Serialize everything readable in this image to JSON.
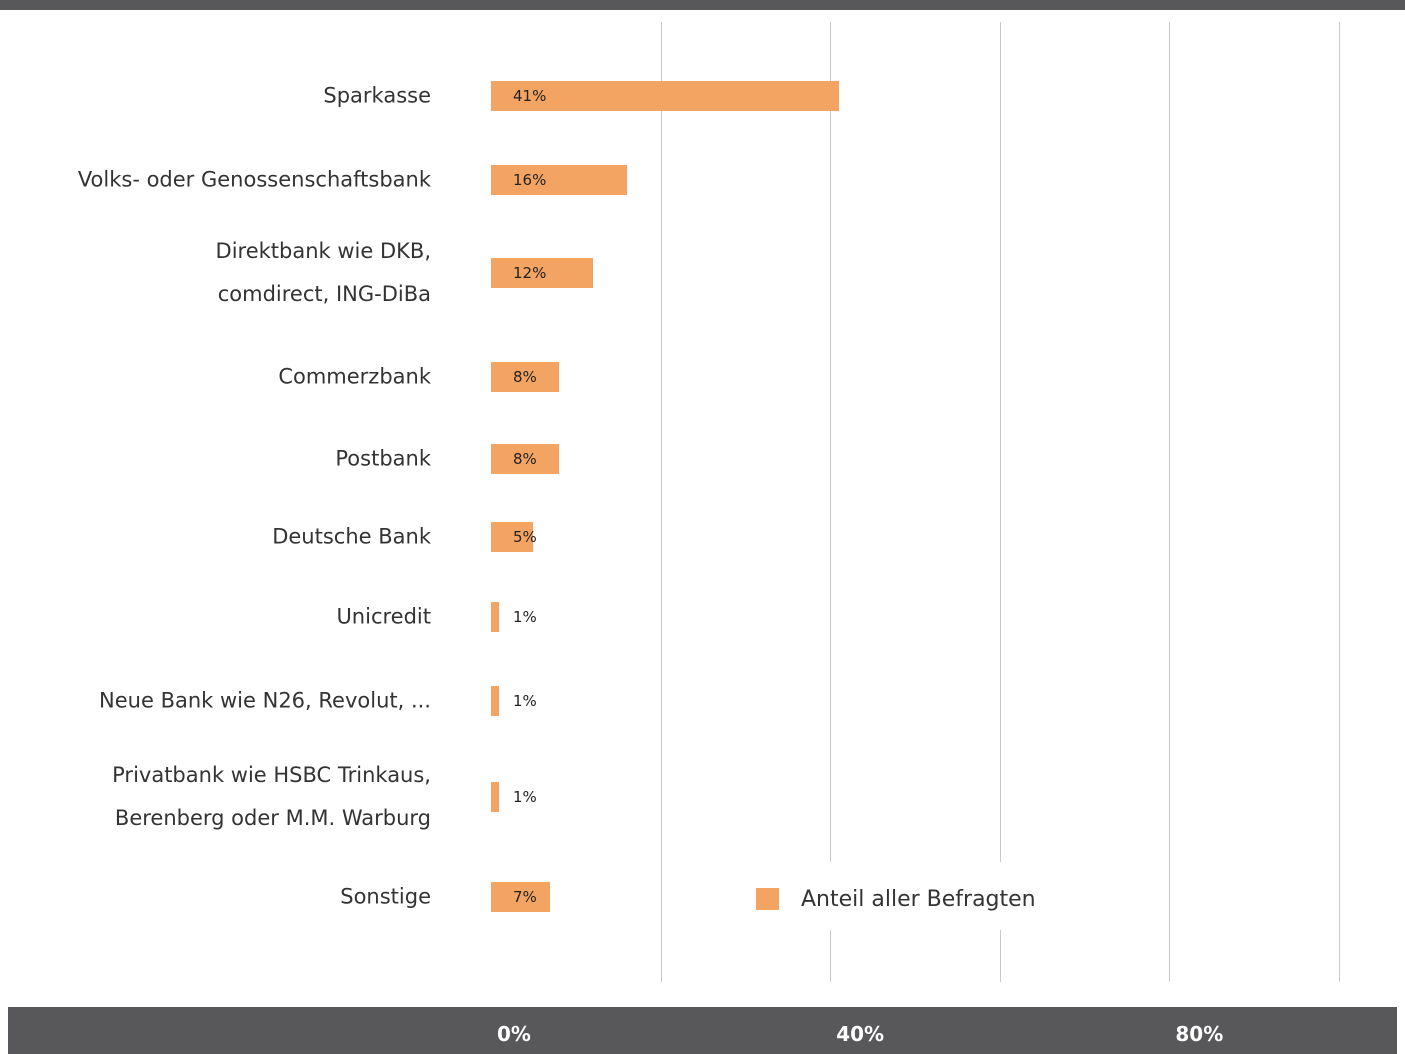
{
  "chart_data": {
    "type": "bar",
    "orientation": "horizontal",
    "categories": [
      "Sparkasse",
      "Volks- oder Genossenschaftsbank",
      "Direktbank wie DKB,\ncomdirect, ING-DiBa",
      "Commerzbank",
      "Postbank",
      "Deutsche Bank",
      "Unicredit",
      "Neue Bank wie N26, Revolut, ...",
      "Privatbank wie HSBC Trinkaus,\nBerenberg oder M.M. Warburg",
      "Sonstige"
    ],
    "series": [
      {
        "name": "Anteil aller Befragten",
        "color": "#f4a462",
        "values": [
          41,
          16,
          12,
          8,
          8,
          5,
          1,
          1,
          1,
          7
        ],
        "value_labels": [
          "41%",
          "16%",
          "12%",
          "8%",
          "8%",
          "5%",
          "1%",
          "1%",
          "1%",
          "7%"
        ]
      }
    ],
    "xlim": [
      0,
      100
    ],
    "xticks": [
      {
        "value": 0,
        "label": "0%"
      },
      {
        "value": 40,
        "label": "40%"
      },
      {
        "value": 80,
        "label": "80%"
      }
    ],
    "grid_xticks": [
      20,
      40,
      60,
      80,
      100
    ],
    "grid": true,
    "legend": "bottom-center"
  }
}
